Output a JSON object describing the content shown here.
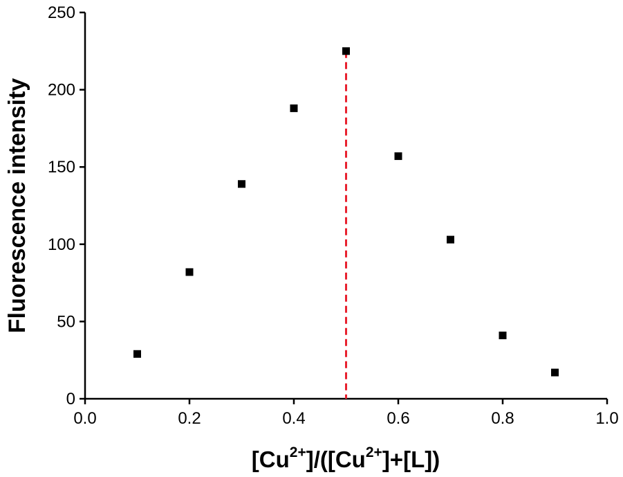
{
  "chart_data": {
    "type": "scatter",
    "x": [
      0.1,
      0.2,
      0.3,
      0.4,
      0.5,
      0.6,
      0.7,
      0.8,
      0.9
    ],
    "y": [
      29,
      82,
      139,
      188,
      225,
      157,
      103,
      41,
      17
    ],
    "xlim": [
      0.0,
      1.0
    ],
    "ylim": [
      0,
      250
    ],
    "xticks": [
      "0.0",
      "0.2",
      "0.4",
      "0.6",
      "0.8",
      "1.0"
    ],
    "yticks": [
      "0",
      "50",
      "100",
      "150",
      "200",
      "250"
    ],
    "xlabel": {
      "part1": "[Cu",
      "sup1": "2+",
      "part2": "]/([Cu",
      "sup2": "2+",
      "part3": "]+[L])"
    },
    "ylabel": "Fluorescence intensity",
    "reference_line": {
      "x": 0.5,
      "color": "#e8212f",
      "style": "dashed"
    },
    "marker": {
      "shape": "square",
      "color": "#000000"
    },
    "grid": false,
    "legend": "none"
  }
}
